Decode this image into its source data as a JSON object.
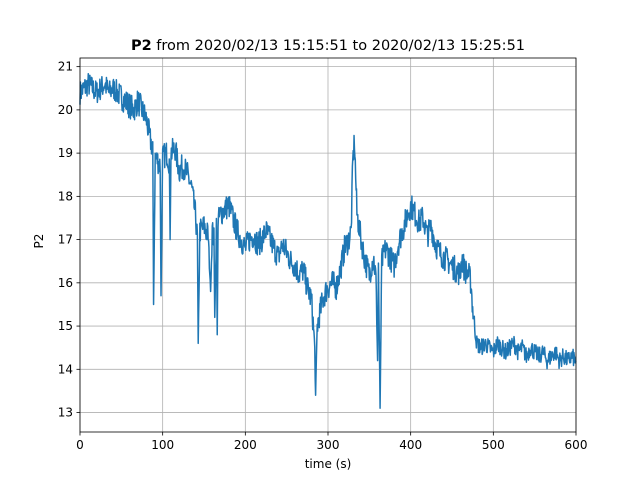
{
  "chart_data": {
    "type": "line",
    "title_bold": "P2",
    "title_rest": " from 2020/02/13 15:15:51 to 2020/02/13 15:25:51",
    "xlabel": "time (s)",
    "ylabel": "P2",
    "xlim": [
      0,
      600
    ],
    "ylim": [
      12.55,
      21.2
    ],
    "xticks": [
      0,
      100,
      200,
      300,
      400,
      500,
      600
    ],
    "yticks": [
      13,
      14,
      15,
      16,
      17,
      18,
      19,
      20,
      21
    ],
    "grid": true,
    "color": "#1f77b4",
    "series": [
      {
        "x": [
          0,
          5,
          10,
          15,
          20,
          25,
          30,
          35,
          40,
          45,
          50,
          55,
          60,
          65,
          70,
          75,
          80,
          85,
          88,
          89,
          91,
          95,
          97,
          98,
          100,
          105,
          108,
          109,
          110,
          115,
          120,
          125,
          130,
          135,
          140,
          142,
          143,
          145,
          150,
          155,
          158,
          160,
          162,
          163,
          165,
          166,
          167,
          170,
          175,
          180,
          185,
          190,
          195,
          200,
          205,
          210,
          215,
          220,
          225,
          230,
          235,
          240,
          245,
          250,
          255,
          260,
          265,
          270,
          275,
          280,
          283,
          284,
          285,
          287,
          290,
          295,
          300,
          305,
          310,
          315,
          320,
          325,
          328,
          330,
          332,
          335,
          340,
          345,
          350,
          355,
          358,
          360,
          361,
          363,
          365,
          370,
          375,
          380,
          385,
          390,
          395,
          400,
          405,
          410,
          415,
          420,
          425,
          430,
          435,
          440,
          445,
          450,
          455,
          460,
          462,
          465,
          470,
          473,
          475,
          478,
          480,
          485,
          490,
          495,
          500,
          505,
          510,
          515,
          520,
          525,
          530,
          535,
          540,
          545,
          550,
          555,
          560,
          565,
          570,
          575,
          580,
          585,
          590,
          595,
          600
        ],
        "y": [
          20.4,
          20.5,
          20.6,
          20.5,
          20.4,
          20.5,
          20.6,
          20.4,
          20.5,
          20.4,
          20.3,
          20.2,
          20.1,
          20.0,
          20.2,
          20.0,
          19.8,
          19.3,
          19.1,
          15.5,
          18.9,
          18.8,
          18.7,
          15.7,
          18.9,
          19.0,
          18.8,
          17.0,
          19.0,
          19.1,
          18.6,
          18.7,
          18.5,
          18.2,
          17.5,
          17.0,
          14.6,
          17.2,
          17.3,
          17.1,
          15.8,
          17.2,
          17.0,
          15.2,
          17.3,
          14.8,
          17.4,
          17.6,
          17.7,
          17.8,
          17.5,
          17.2,
          17.0,
          16.8,
          17.0,
          17.1,
          16.9,
          17.0,
          17.2,
          17.0,
          16.8,
          16.6,
          16.9,
          16.7,
          16.5,
          16.4,
          16.2,
          16.3,
          15.9,
          15.6,
          14.8,
          14.4,
          13.4,
          15.0,
          15.3,
          15.7,
          15.9,
          16.0,
          15.9,
          16.3,
          16.8,
          17.0,
          17.2,
          18.8,
          19.3,
          17.6,
          17.0,
          16.5,
          16.2,
          16.6,
          16.1,
          14.2,
          16.4,
          13.1,
          16.5,
          16.8,
          16.6,
          16.4,
          16.9,
          17.2,
          17.5,
          17.8,
          17.6,
          17.4,
          17.5,
          17.1,
          17.3,
          16.9,
          16.7,
          16.6,
          16.5,
          16.4,
          16.3,
          16.2,
          16.6,
          16.3,
          16.2,
          16.0,
          15.4,
          14.9,
          14.6,
          14.5,
          14.6,
          14.5,
          14.4,
          14.6,
          14.5,
          14.4,
          14.5,
          14.6,
          14.4,
          14.5,
          14.3,
          14.5,
          14.4,
          14.3,
          14.4,
          14.2,
          14.3,
          14.4,
          14.2,
          14.3,
          14.2,
          14.3,
          14.2
        ],
        "noise": [
          0.28,
          0.28,
          0.28,
          0.28,
          0.28,
          0.28,
          0.28,
          0.28,
          0.28,
          0.28,
          0.3,
          0.3,
          0.3,
          0.3,
          0.3,
          0.3,
          0.3,
          0.3,
          0.3,
          0,
          0.3,
          0.3,
          0.3,
          0,
          0.3,
          0.3,
          0.3,
          0,
          0.3,
          0.3,
          0.3,
          0.3,
          0.3,
          0.3,
          0.3,
          0.3,
          0,
          0.3,
          0.3,
          0.3,
          0,
          0.3,
          0.3,
          0,
          0.3,
          0,
          0.3,
          0.3,
          0.3,
          0.3,
          0.3,
          0.3,
          0.3,
          0.3,
          0.3,
          0.3,
          0.3,
          0.3,
          0.3,
          0.3,
          0.3,
          0.3,
          0.3,
          0.3,
          0.3,
          0.3,
          0.3,
          0.3,
          0.3,
          0.3,
          0.3,
          0.3,
          0,
          0.3,
          0.3,
          0.3,
          0.3,
          0.3,
          0.3,
          0.3,
          0.3,
          0.3,
          0.3,
          0.3,
          0.3,
          0.3,
          0.3,
          0.3,
          0.3,
          0.3,
          0.3,
          0,
          0.3,
          0,
          0.3,
          0.3,
          0.3,
          0.3,
          0.3,
          0.3,
          0.3,
          0.3,
          0.3,
          0.3,
          0.3,
          0.3,
          0.3,
          0.3,
          0.3,
          0.3,
          0.3,
          0.3,
          0.3,
          0.3,
          0.3,
          0.3,
          0.3,
          0.3,
          0.3,
          0.2,
          0.2,
          0.2,
          0.2,
          0.2,
          0.2,
          0.2,
          0.2,
          0.2,
          0.2,
          0.2,
          0.2,
          0.2,
          0.2,
          0.2,
          0.2,
          0.2,
          0.2,
          0.2,
          0.2,
          0.2,
          0.2,
          0.2,
          0.2,
          0.2,
          0.2
        ]
      }
    ]
  }
}
